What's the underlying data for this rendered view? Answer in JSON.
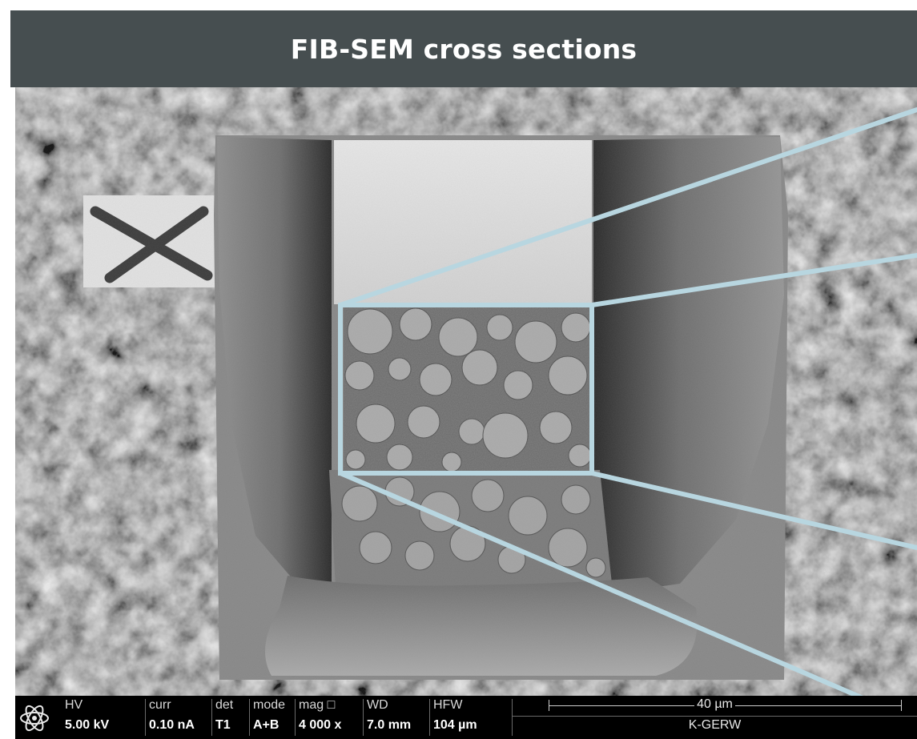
{
  "title": "FIB-SEM cross sections",
  "colors": {
    "title_bar": "#464e50",
    "callout_lines": "#b8d6e0",
    "databar": "#000000"
  },
  "databar": {
    "logo_icon": "atom-logo-icon",
    "fields": [
      {
        "label": "HV",
        "value": "5.00 kV"
      },
      {
        "label": "curr",
        "value": "0.10 nA"
      },
      {
        "label": "det",
        "value": "T1"
      },
      {
        "label": "mode",
        "value": "A+B"
      },
      {
        "label": "mag □",
        "value": "4 000 x"
      },
      {
        "label": "WD",
        "value": "7.0 mm"
      },
      {
        "label": "HFW",
        "value": "104 µm"
      }
    ],
    "scale_label": "40 µm",
    "instrument": "K-GERW"
  }
}
